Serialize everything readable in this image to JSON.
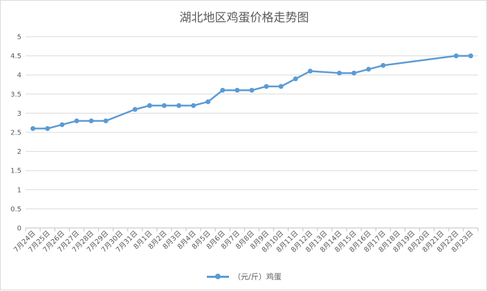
{
  "chart_data": {
    "type": "line",
    "title": "湖北地区鸡蛋价格走势图",
    "categories": [
      "7月24日",
      "7月25日",
      "7月26日",
      "7月27日",
      "7月28日",
      "7月29日",
      "7月30日",
      "7月31日",
      "8月1日",
      "8月2日",
      "8月3日",
      "8月4日",
      "8月5日",
      "8月6日",
      "8月7日",
      "8月8日",
      "8月9日",
      "8月10日",
      "8月11日",
      "8月12日",
      "8月13日",
      "8月14日",
      "8月15日",
      "8月16日",
      "8月17日",
      "8月18日",
      "8月19日",
      "8月20日",
      "8月21日",
      "8月22日",
      "8月23日"
    ],
    "series": [
      {
        "name": "（元/斤）鸡蛋",
        "color": "#5b9bd5",
        "values": [
          2.6,
          2.6,
          2.7,
          2.8,
          2.8,
          2.8,
          null,
          3.1,
          3.2,
          3.2,
          3.2,
          3.2,
          3.3,
          3.6,
          3.6,
          3.6,
          3.7,
          3.7,
          3.9,
          4.1,
          null,
          4.05,
          4.05,
          4.15,
          4.25,
          null,
          null,
          null,
          null,
          4.5,
          4.5
        ]
      }
    ],
    "yticks": [
      "0",
      "0.5",
      "1",
      "1.5",
      "2",
      "2.5",
      "3",
      "3.5",
      "4",
      "4.5",
      "5"
    ],
    "ylim": [
      0,
      5
    ],
    "grid": true,
    "legend": "bottom"
  }
}
